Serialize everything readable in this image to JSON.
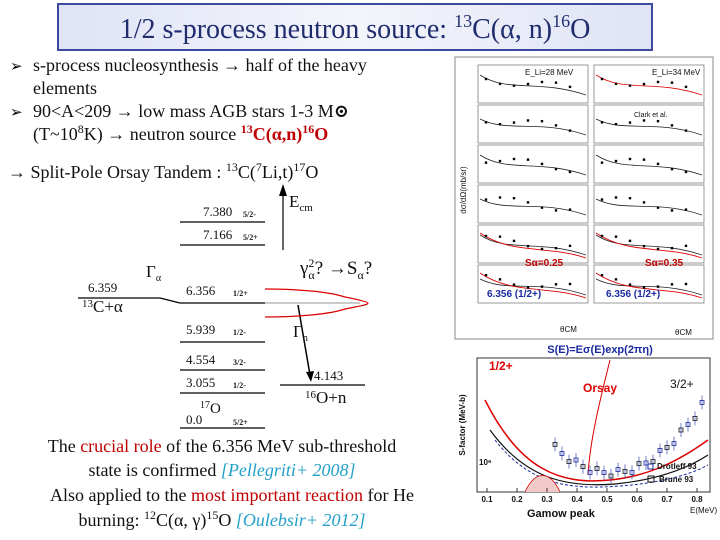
{
  "title": [
    "1/2 s-process neutron source: ",
    "13",
    "C(α, n)",
    "16",
    "O"
  ],
  "bullets": [
    [
      [
        "s-process  nucleosynthesis  → half of the heavy"
      ],
      [
        "elements"
      ]
    ],
    [
      [
        "90<A<209 → low mass AGB stars 1-3 M",
        "⊙"
      ],
      [
        "(T~10",
        "8",
        "K) → neutron source  ",
        "13",
        "C(α,n)",
        "16",
        "O"
      ]
    ]
  ],
  "setup": [
    "→ Split-Pole Orsay Tandem :  ",
    "13",
    "C(",
    "7",
    "Li,t)",
    "17",
    "O"
  ],
  "level_scheme": {
    "ecm": [
      "E",
      "cm"
    ],
    "levels": [
      {
        "energy": "7.380",
        "jpi": "5/2-"
      },
      {
        "energy": "7.166",
        "jpi": "5/2+"
      },
      {
        "energy": "6.356",
        "jpi": "1/2+"
      },
      {
        "energy": "5.939",
        "jpi": "1/2-"
      },
      {
        "energy": "4.554",
        "jpi": "3/2-"
      },
      {
        "energy": "3.055",
        "jpi": "1/2-"
      },
      {
        "energy": "0.0",
        "jpi": "5/2+"
      }
    ],
    "nucleus": [
      "17",
      "O"
    ],
    "alpha_threshold": {
      "energy": "6.359",
      "label": [
        "13",
        "C+α"
      ]
    },
    "neutron_threshold": {
      "energy": "4.143",
      "label": [
        "16",
        "O+n"
      ]
    },
    "gamma_alpha": [
      "Γ",
      "α"
    ],
    "gamma_n": [
      "Γ",
      "n"
    ],
    "question": [
      "γ",
      "2",
      "α",
      "? →S",
      "α",
      "?"
    ]
  },
  "conclusion": [
    [
      "The ",
      "crucial role",
      " of the 6.356 MeV sub-threshold"
    ],
    [
      "state is confirmed  ",
      "[Pellegriti+ 2008]"
    ],
    [
      "Also applied to the ",
      "most important reaction",
      " for He"
    ],
    [
      "burning:   ",
      "12",
      "C(α, γ)",
      "15",
      "O  ",
      "[Oulebsir+ 2012]"
    ]
  ],
  "top_plot": {
    "y_label": "dσ/dΩ(mb/sr)",
    "beam_left": "E_Li=28 MeV",
    "beam_right": "E_Li=34 MeV",
    "reference": "Clark et al.",
    "s_left": "Sα=0.25",
    "s_right": "Sα=0.35",
    "state_left": "6.356 (1/2+)",
    "state_right": "6.356 (1/2+)",
    "x_label": "θCM"
  },
  "bottom_plot": {
    "title": "S(E)=Eσ(E)exp(2πη)",
    "y_label": "S-factor (MeV-b)",
    "y_mark": "10⁶",
    "x_label": "E(MeV)",
    "x_ticks": [
      "0.1",
      "0.2",
      "0.3",
      "0.4",
      "0.5",
      "0.6",
      "0.7",
      "0.8"
    ],
    "state_low": "1/2+",
    "state_high": "3/2+",
    "orsay": "Orsay",
    "legend": [
      "Drotleff 93",
      "Brune 93"
    ],
    "gamow": "Gamow peak"
  }
}
